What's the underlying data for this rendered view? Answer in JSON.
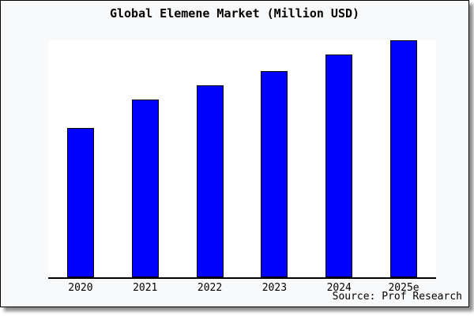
{
  "window": {
    "background": "#f8f9fa",
    "plot_background": "#ffffff",
    "frame_border_color": "#000000",
    "shadow_color": "#737373"
  },
  "chart_data": {
    "type": "bar",
    "title": "Global Elemene Market (Million USD)",
    "categories": [
      "2020",
      "2021",
      "2022",
      "2023",
      "2024",
      "2025e"
    ],
    "values": [
      63,
      75,
      81,
      87,
      94,
      100
    ],
    "ylim": [
      0,
      100
    ],
    "xlabel": "",
    "ylabel": "",
    "grid": false,
    "legend": false,
    "bar_color": "#0000ff",
    "bar_edge_color": "#000000",
    "axis_color": "#000000",
    "source": "Source: Prof Research"
  }
}
